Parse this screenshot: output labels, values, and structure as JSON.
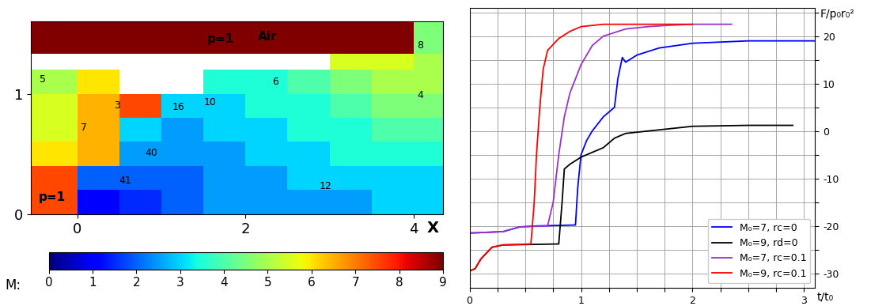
{
  "chart_data": [
    {
      "type": "heatmap",
      "x_label": "X",
      "xlim": [
        -0.55,
        4.35
      ],
      "xticks": [
        0,
        2,
        4
      ],
      "ylim": [
        0,
        1.6
      ],
      "yticks": [
        0,
        1
      ],
      "x_edges": [
        -0.55,
        0,
        0.5,
        1,
        1.5,
        2,
        2.5,
        3,
        3.5,
        4,
        4.35
      ],
      "y_edges": [
        0,
        0.2,
        0.4,
        0.6,
        0.8,
        1.0,
        1.2,
        1.33,
        1.6
      ],
      "cells": [
        [
          7.5,
          1,
          1.5,
          2,
          2.5,
          2.5,
          2.5,
          2.5,
          3,
          3
        ],
        [
          7.5,
          2,
          2,
          2,
          2.5,
          2.5,
          3,
          3,
          3,
          3
        ],
        [
          6,
          6.5,
          2.5,
          2.5,
          2.5,
          3,
          3,
          3.5,
          3.5,
          3.5
        ],
        [
          5.5,
          6.5,
          3,
          2.5,
          3,
          3,
          3.5,
          3.5,
          4,
          4
        ],
        [
          5.5,
          6.5,
          7.5,
          3,
          3,
          3.5,
          3.5,
          4,
          4.5,
          4.5
        ],
        [
          5,
          6,
          null,
          null,
          3.5,
          3.5,
          4,
          4.5,
          5,
          5
        ],
        [
          null,
          null,
          null,
          null,
          null,
          null,
          null,
          5.5,
          5.5,
          5
        ],
        [
          9,
          9,
          9,
          9,
          9,
          9,
          9,
          9,
          9,
          4.5
        ]
      ],
      "colorbar": {
        "label": "M:",
        "range": [
          0,
          9
        ],
        "ticks": [
          0,
          1,
          2,
          3,
          4,
          5,
          6,
          7,
          8,
          9
        ]
      },
      "annotations": [
        {
          "text": "p=1",
          "x": 1.7,
          "y": 1.45
        },
        {
          "text": "Air",
          "x": 2.26,
          "y": 1.47
        },
        {
          "text": "p=1",
          "x": -0.3,
          "y": 0.14
        },
        {
          "text": "5",
          "x": -0.41,
          "y": 1.12
        },
        {
          "text": "3",
          "x": 0.47,
          "y": 0.9
        },
        {
          "text": "7",
          "x": 0.08,
          "y": 0.72
        },
        {
          "text": "40",
          "x": 0.88,
          "y": 0.51
        },
        {
          "text": "41",
          "x": 0.57,
          "y": 0.28
        },
        {
          "text": "16",
          "x": 1.2,
          "y": 0.89
        },
        {
          "text": "10",
          "x": 1.58,
          "y": 0.93
        },
        {
          "text": "6",
          "x": 2.36,
          "y": 1.1
        },
        {
          "text": "12",
          "x": 2.95,
          "y": 0.23
        },
        {
          "text": "8",
          "x": 4.08,
          "y": 1.4
        },
        {
          "text": "4",
          "x": 4.08,
          "y": 0.99
        }
      ]
    },
    {
      "type": "line",
      "x_label": "t/t₀",
      "y_label": "F/p₀r₀²",
      "xlim": [
        0,
        3.1
      ],
      "xticks": [
        0,
        {
          "value": 0.25,
          "label": null
        },
        {
          "value": 0.5,
          "label": null
        },
        {
          "value": 0.75,
          "label": null
        },
        1,
        {
          "value": 1.25,
          "label": null
        },
        {
          "value": 1.5,
          "label": null
        },
        {
          "value": 1.75,
          "label": null
        },
        2,
        {
          "value": 2.25,
          "label": null
        },
        {
          "value": 2.5,
          "label": null
        },
        {
          "value": 2.75,
          "label": null
        },
        3
      ],
      "ylim": [
        -33,
        26
      ],
      "yticks": [
        -30,
        {
          "value": -25,
          "label": null
        },
        -20,
        {
          "value": -15,
          "label": null
        },
        -10,
        {
          "value": -5,
          "label": null
        },
        0,
        {
          "value": 5,
          "label": null
        },
        10,
        {
          "value": 15,
          "label": null
        },
        20,
        {
          "value": 25,
          "label": null
        }
      ],
      "grid": true,
      "legend": "lower right",
      "series": [
        {
          "name": "M₀=7, rc=0",
          "color": "#0000ff",
          "x": [
            0,
            0.3,
            0.45,
            0.6,
            0.95,
            0.97,
            1.0,
            1.05,
            1.1,
            1.2,
            1.3,
            1.33,
            1.37,
            1.4,
            1.5,
            1.7,
            2.0,
            2.5,
            3.1
          ],
          "values": [
            -21.5,
            -21.2,
            -20.2,
            -20,
            -19.8,
            -12,
            -5,
            -2,
            0,
            3,
            5,
            11,
            15.5,
            14.5,
            16,
            17.5,
            18.5,
            19,
            19
          ]
        },
        {
          "name": "M₀=9, rd=0",
          "color": "#000000",
          "x": [
            0,
            0.05,
            0.1,
            0.2,
            0.3,
            0.8,
            0.83,
            0.85,
            0.9,
            1.0,
            1.1,
            1.2,
            1.3,
            1.4,
            1.6,
            1.8,
            2.0,
            2.5,
            2.9
          ],
          "values": [
            -29.5,
            -29,
            -27,
            -24.5,
            -24,
            -23.8,
            -15,
            -8,
            -7,
            -5.5,
            -4.5,
            -3.5,
            -1.5,
            -0.5,
            0,
            0.5,
            1,
            1.2,
            1.2
          ]
        },
        {
          "name": "M₀=7, rc=0.1",
          "color": "#9933cc",
          "x": [
            0,
            0.3,
            0.45,
            0.7,
            0.75,
            0.8,
            0.85,
            0.9,
            1.0,
            1.1,
            1.2,
            1.4,
            1.6,
            1.8,
            2.0,
            2.35
          ],
          "values": [
            -21.5,
            -21.2,
            -20.2,
            -20,
            -15,
            -5,
            3,
            8,
            14,
            18,
            20,
            21.5,
            22,
            22.3,
            22.5,
            22.5
          ]
        },
        {
          "name": "M₀=9, rc=0.1",
          "color": "#ff0000",
          "x": [
            0,
            0.05,
            0.1,
            0.2,
            0.3,
            0.55,
            0.58,
            0.6,
            0.63,
            0.66,
            0.7,
            0.8,
            0.9,
            1.0,
            1.2,
            1.5,
            2.0
          ],
          "values": [
            -29.5,
            -29,
            -27,
            -24.5,
            -24,
            -23.8,
            -15,
            -5,
            5,
            13,
            17,
            19.5,
            21,
            22,
            22.5,
            22.5,
            22.5
          ]
        }
      ]
    }
  ]
}
